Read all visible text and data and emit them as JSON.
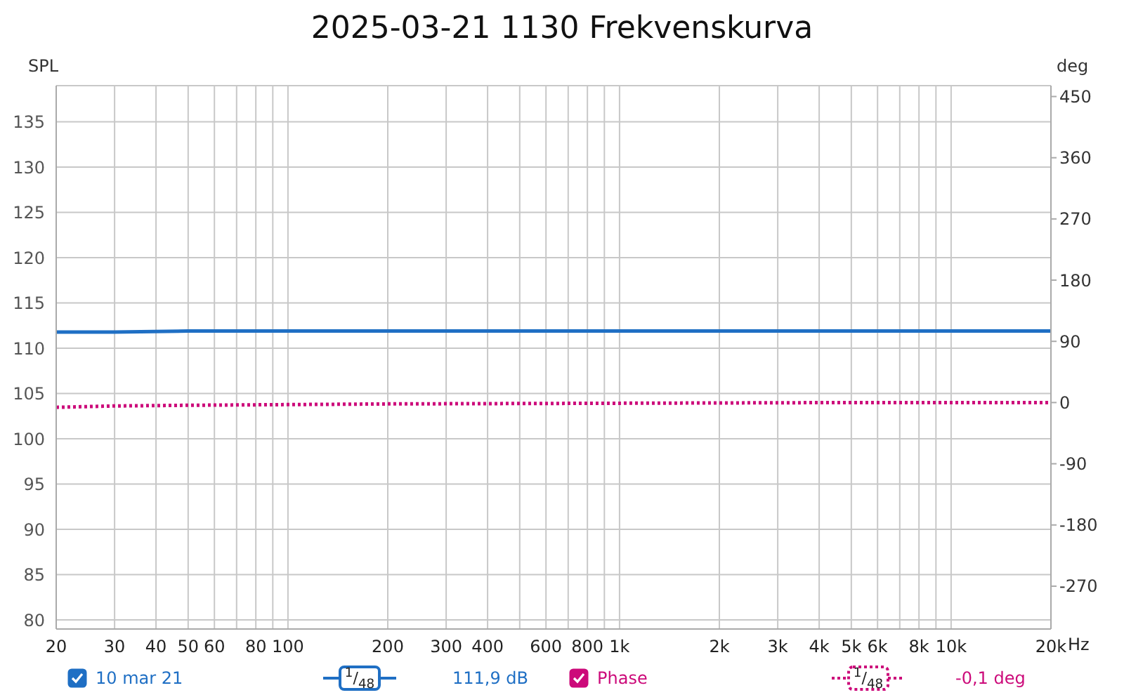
{
  "chart_data": {
    "type": "line",
    "title": "2025-03-21 1130 Frekvenskurva",
    "ylabel": "SPL",
    "y2label": "deg",
    "xlim": [
      20,
      20000
    ],
    "xticks": [
      20,
      30,
      40,
      50,
      60,
      {
        "value": 70,
        "label": null
      },
      80,
      {
        "value": 90,
        "label": null
      },
      100,
      200,
      300,
      400,
      {
        "value": 500,
        "label": null
      },
      600,
      {
        "value": 700,
        "label": null
      },
      800,
      {
        "value": 900,
        "label": null
      },
      {
        "value": 1000,
        "label": "1k"
      },
      {
        "value": 2000,
        "label": "2k"
      },
      {
        "value": 3000,
        "label": "3k"
      },
      {
        "value": 4000,
        "label": "4k"
      },
      {
        "value": 5000,
        "label": "5k"
      },
      {
        "value": 6000,
        "label": "6k"
      },
      {
        "value": 7000,
        "label": null
      },
      {
        "value": 8000,
        "label": "8k"
      },
      {
        "value": 9000,
        "label": null
      },
      {
        "value": 10000,
        "label": "10k"
      },
      {
        "value": 20000,
        "label": "20k"
      }
    ],
    "xlabel": "Hz",
    "ylim": [
      79,
      139
    ],
    "yticks": [
      80,
      85,
      90,
      95,
      100,
      105,
      110,
      115,
      120,
      125,
      130,
      135
    ],
    "y2lim": [
      -333,
      466
    ],
    "y2ticks": [
      -270,
      -180,
      -90,
      0,
      90,
      180,
      270,
      360,
      450
    ],
    "log": "x",
    "grid": true,
    "legend": "bottom",
    "marker": "none",
    "series": [
      {
        "name": "10 mar 21",
        "color": "#1f6fc4",
        "line_style": "solid",
        "x": [
          20,
          30,
          50,
          100,
          200,
          1000,
          5000,
          10000,
          20000
        ],
        "values": [
          111.8,
          111.8,
          111.9,
          111.9,
          111.9,
          111.9,
          111.9,
          111.9,
          111.9
        ]
      },
      {
        "name": "Phase",
        "color": "#cc0a7a",
        "line_style": "dotted",
        "axis": "y2",
        "x": [
          20,
          30,
          50,
          100,
          200,
          1000,
          5000,
          10000,
          20000
        ],
        "values": [
          -7,
          -5,
          -4,
          -3,
          -2,
          -1,
          0,
          0,
          0
        ]
      }
    ],
    "annotations": [
      "$^{1}$/$_{48}$",
      "111,9 dB",
      "$^{1}$/$_{48}$",
      "-0,1 deg"
    ]
  }
}
